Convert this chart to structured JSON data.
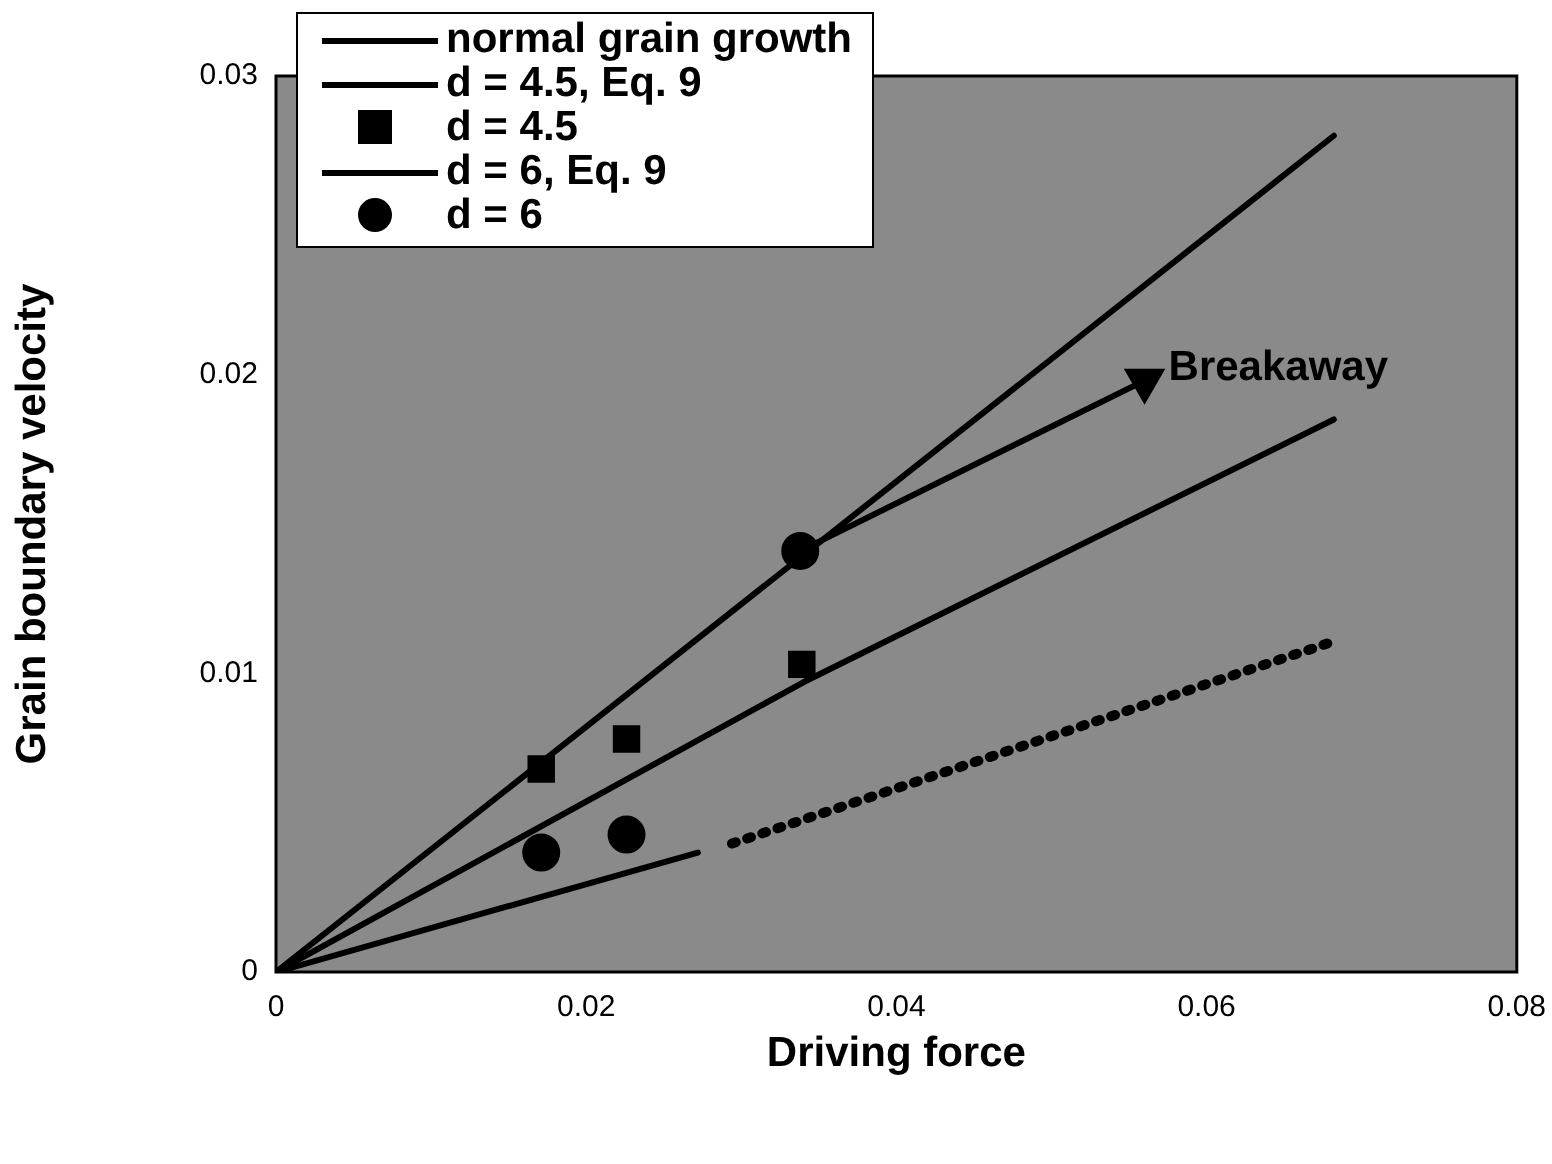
{
  "chart_data": {
    "type": "line",
    "xlabel": "Driving force",
    "ylabel": "Grain boundary velocity",
    "xlim": [
      0,
      0.08
    ],
    "xticks": [
      0,
      0.02,
      0.04,
      0.06,
      0.08
    ],
    "ylim": [
      0,
      0.03
    ],
    "yticks": [
      0,
      0.01,
      0.02,
      0.03
    ],
    "legend": "top left",
    "grid": false,
    "annotations": [
      {
        "text": "Breakaway",
        "x": 0.056,
        "y": 0.0198
      }
    ],
    "series": [
      {
        "name": "normal grain growth",
        "color": "#000000",
        "marker": "none",
        "line_style": "solid",
        "x": [
          0,
          0.0682
        ],
        "values": [
          0,
          0.028
        ]
      },
      {
        "name": "d = 4.5, Eq. 9",
        "color": "#000000",
        "marker": "none",
        "line_style": "solid",
        "x": [
          0,
          0.034,
          0.0682
        ],
        "values": [
          0,
          0.0097,
          0.0185
        ]
      },
      {
        "name": "d = 4.5",
        "type": "scatter",
        "color": "#000000",
        "marker": "square",
        "x": [
          0.0171,
          0.0226,
          0.0339
        ],
        "values": [
          0.0068,
          0.0078,
          0.0103
        ]
      },
      {
        "name": "d = 6, Eq. 9",
        "color": "#000000",
        "marker": "none",
        "line_style": "solid",
        "x": [
          0,
          0.0272
        ],
        "values": [
          0,
          0.004
        ]
      },
      {
        "color": "#000000",
        "marker": "none",
        "line_style": "dotted",
        "x": [
          0.0294,
          0.0678
        ],
        "values": [
          0.0043,
          0.011
        ]
      },
      {
        "color": "#000000",
        "marker": "triangle",
        "line_style": "solid",
        "x": [
          0.0338,
          0.056
        ],
        "values": [
          0.0141,
          0.0198
        ]
      },
      {
        "name": "d = 6",
        "type": "scatter",
        "color": "#000000",
        "marker": "circle",
        "x": [
          0.0171,
          0.0226,
          0.0338
        ],
        "values": [
          0.004,
          0.0046,
          0.0141
        ]
      }
    ]
  }
}
